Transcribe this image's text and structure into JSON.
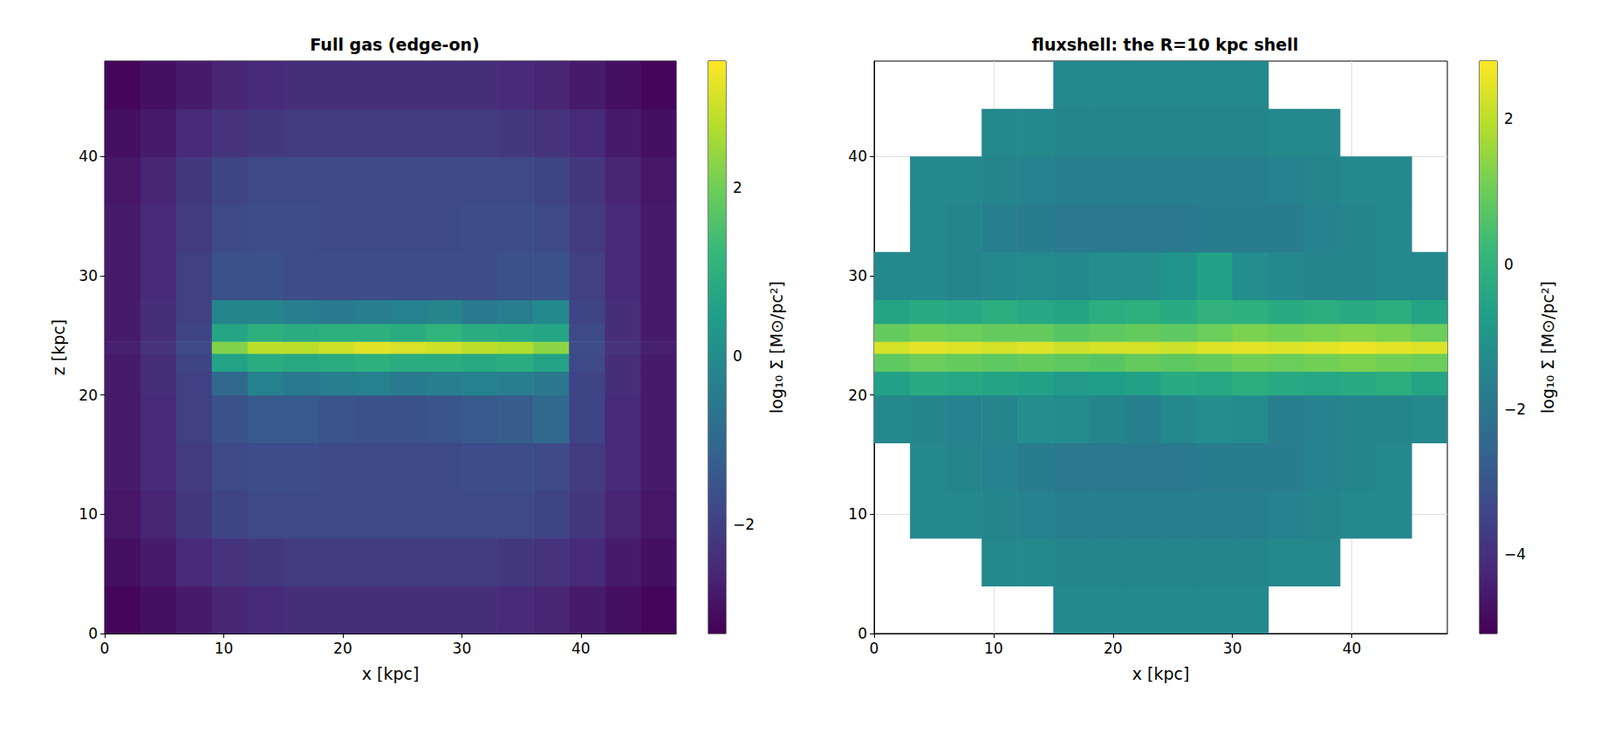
{
  "chart_data": [
    {
      "type": "heatmap",
      "title": "Full gas (edge-on)",
      "xlabel": "x [kpc]",
      "ylabel": "z [kpc]",
      "xlim": [
        0,
        48
      ],
      "ylim": [
        0,
        48
      ],
      "xticks": [
        0,
        10,
        20,
        30,
        40
      ],
      "yticks": [
        0,
        10,
        20,
        30,
        40
      ],
      "grid": false,
      "x_edges": [
        0,
        3,
        6,
        9,
        12,
        15,
        18,
        21,
        24,
        27,
        30,
        33,
        36,
        39,
        42,
        45,
        48
      ],
      "z_edges": [
        0,
        4,
        8,
        12,
        16,
        20,
        22,
        23.5,
        24.5,
        26,
        28,
        32,
        36,
        40,
        44,
        48
      ],
      "cells": [
        [
          -3.2,
          -3.0,
          -2.8,
          -2.6,
          -2.5,
          -2.4,
          -2.4,
          -2.4,
          -2.4,
          -2.4,
          -2.4,
          -2.5,
          -2.6,
          -2.8,
          -3.0,
          -3.2
        ],
        [
          -3.0,
          -2.8,
          -2.5,
          -2.3,
          -2.2,
          -2.1,
          -2.1,
          -2.1,
          -2.1,
          -2.1,
          -2.1,
          -2.2,
          -2.3,
          -2.5,
          -2.8,
          -3.0
        ],
        [
          -2.9,
          -2.6,
          -2.2,
          -1.9,
          -1.8,
          -1.8,
          -1.8,
          -1.8,
          -1.8,
          -1.8,
          -1.8,
          -1.8,
          -1.9,
          -2.2,
          -2.6,
          -2.9
        ],
        [
          -2.8,
          -2.5,
          -2.1,
          -1.8,
          -1.7,
          -1.7,
          -1.8,
          -1.8,
          -1.8,
          -1.8,
          -1.7,
          -1.7,
          -1.8,
          -2.1,
          -2.5,
          -2.8
        ],
        [
          -2.8,
          -2.5,
          -2.0,
          -1.6,
          -1.4,
          -1.4,
          -1.5,
          -1.6,
          -1.6,
          -1.5,
          -1.4,
          -1.3,
          -1.0,
          -1.9,
          -2.5,
          -2.8
        ],
        [
          -2.8,
          -2.4,
          -2.0,
          -1.0,
          -0.3,
          -0.5,
          -0.4,
          -0.3,
          -0.5,
          -0.4,
          -0.3,
          -0.4,
          -0.6,
          -1.9,
          -2.4,
          -2.8
        ],
        [
          -2.8,
          -2.4,
          -1.9,
          0.6,
          0.9,
          0.8,
          0.9,
          1.0,
          0.9,
          0.9,
          0.8,
          0.9,
          0.6,
          -1.8,
          -2.4,
          -2.8
        ],
        [
          -2.7,
          -2.3,
          -1.8,
          2.2,
          2.8,
          2.8,
          3.0,
          3.2,
          3.1,
          3.0,
          2.8,
          2.7,
          2.3,
          -1.7,
          -2.3,
          -2.7
        ],
        [
          -2.8,
          -2.4,
          -1.9,
          0.7,
          1.0,
          0.9,
          1.0,
          1.0,
          0.9,
          1.1,
          0.9,
          0.8,
          0.7,
          -1.8,
          -2.4,
          -2.8
        ],
        [
          -2.8,
          -2.4,
          -2.0,
          -0.2,
          -0.2,
          -0.4,
          -0.5,
          -0.4,
          -0.3,
          -0.2,
          -0.5,
          -0.4,
          -0.1,
          -1.9,
          -2.4,
          -2.8
        ],
        [
          -2.8,
          -2.5,
          -2.0,
          -1.6,
          -1.6,
          -1.7,
          -1.7,
          -1.7,
          -1.7,
          -1.7,
          -1.7,
          -1.6,
          -1.6,
          -2.0,
          -2.5,
          -2.8
        ],
        [
          -2.8,
          -2.5,
          -2.1,
          -1.8,
          -1.7,
          -1.7,
          -1.8,
          -1.8,
          -1.8,
          -1.8,
          -1.7,
          -1.7,
          -1.8,
          -2.1,
          -2.5,
          -2.8
        ],
        [
          -2.9,
          -2.6,
          -2.2,
          -1.9,
          -1.8,
          -1.8,
          -1.8,
          -1.8,
          -1.8,
          -1.8,
          -1.8,
          -1.8,
          -1.9,
          -2.2,
          -2.6,
          -2.9
        ],
        [
          -3.0,
          -2.8,
          -2.5,
          -2.3,
          -2.2,
          -2.1,
          -2.1,
          -2.1,
          -2.1,
          -2.1,
          -2.1,
          -2.2,
          -2.3,
          -2.5,
          -2.8,
          -3.0
        ],
        [
          -3.2,
          -3.0,
          -2.8,
          -2.6,
          -2.5,
          -2.4,
          -2.4,
          -2.4,
          -2.4,
          -2.4,
          -2.4,
          -2.5,
          -2.6,
          -2.8,
          -3.0,
          -3.2
        ]
      ],
      "colorbar": {
        "label": "log₁₀ Σ [M⊙/pc²]",
        "range": [
          -3.3,
          3.5
        ],
        "ticks": [
          {
            "value": -2,
            "label": "−2"
          },
          0,
          2
        ]
      }
    },
    {
      "type": "heatmap",
      "title": "fluxshell: the R=10 kpc shell",
      "xlabel": "x [kpc]",
      "xlim": [
        0,
        48
      ],
      "ylim": [
        0,
        48
      ],
      "xticks": [
        0,
        10,
        20,
        30,
        40
      ],
      "yticks": [
        0,
        10,
        20,
        30,
        40
      ],
      "grid": true,
      "x_edges": [
        0,
        3,
        6,
        9,
        12,
        15,
        18,
        21,
        24,
        27,
        30,
        33,
        36,
        39,
        42,
        45,
        48
      ],
      "z_edges": [
        0,
        4,
        8,
        12,
        16,
        20,
        22,
        23.5,
        24.5,
        26,
        28,
        32,
        36,
        40,
        44,
        48
      ],
      "cells": [
        [
          null,
          null,
          null,
          null,
          null,
          -1.4,
          -1.4,
          -1.4,
          -1.4,
          -1.4,
          -1.4,
          null,
          null,
          null,
          null,
          null
        ],
        [
          null,
          null,
          null,
          -1.4,
          -1.4,
          -1.5,
          -1.5,
          -1.5,
          -1.5,
          -1.5,
          -1.5,
          -1.4,
          -1.4,
          null,
          null,
          null
        ],
        [
          null,
          -1.4,
          -1.4,
          -1.5,
          -1.6,
          -1.7,
          -1.7,
          -1.7,
          -1.7,
          -1.7,
          -1.7,
          -1.6,
          -1.5,
          -1.4,
          -1.4,
          null
        ],
        [
          null,
          -1.4,
          -1.5,
          -1.6,
          -1.8,
          -1.9,
          -1.9,
          -1.9,
          -1.9,
          -1.8,
          -1.8,
          -1.8,
          -1.6,
          -1.5,
          -1.4,
          null
        ],
        [
          -1.4,
          -1.5,
          -1.6,
          -1.5,
          -1.2,
          -1.3,
          -1.5,
          -1.7,
          -1.4,
          -1.2,
          -1.3,
          -1.7,
          -1.6,
          -1.5,
          -1.5,
          -1.4
        ],
        [
          -0.6,
          -0.3,
          -0.4,
          -0.5,
          -0.6,
          -0.8,
          -0.7,
          -0.6,
          -0.3,
          -0.4,
          -0.2,
          -0.3,
          -0.4,
          -0.3,
          -0.2,
          -0.5
        ],
        [
          0.8,
          1.0,
          0.9,
          0.8,
          0.9,
          0.8,
          0.7,
          0.9,
          0.8,
          0.9,
          1.1,
          1.0,
          1.1,
          1.2,
          1.1,
          1.0
        ],
        [
          2.3,
          2.5,
          2.4,
          2.3,
          2.4,
          2.2,
          2.3,
          2.3,
          2.2,
          2.4,
          2.5,
          2.4,
          2.5,
          2.6,
          2.5,
          2.4
        ],
        [
          0.9,
          1.1,
          1.0,
          0.9,
          0.9,
          0.7,
          0.8,
          0.9,
          0.8,
          1.0,
          1.2,
          1.1,
          1.2,
          1.3,
          1.2,
          1.0
        ],
        [
          -0.5,
          -0.3,
          -0.4,
          -0.2,
          -0.4,
          -0.5,
          -0.2,
          -0.1,
          -0.3,
          0.0,
          -0.1,
          -0.3,
          -0.2,
          -0.3,
          -0.2,
          -0.5
        ],
        [
          -1.4,
          -1.4,
          -1.5,
          -1.4,
          -1.3,
          -1.4,
          -1.2,
          -1.2,
          -1.0,
          -0.6,
          -1.2,
          -1.4,
          -1.5,
          -1.5,
          -1.4,
          -1.4
        ],
        [
          null,
          -1.4,
          -1.5,
          -1.7,
          -1.8,
          -1.9,
          -1.9,
          -1.9,
          -1.9,
          -1.8,
          -1.8,
          -1.8,
          -1.6,
          -1.5,
          -1.4,
          null
        ],
        [
          null,
          -1.4,
          -1.4,
          -1.5,
          -1.6,
          -1.7,
          -1.7,
          -1.7,
          -1.7,
          -1.7,
          -1.7,
          -1.6,
          -1.5,
          -1.4,
          -1.4,
          null
        ],
        [
          null,
          null,
          null,
          -1.4,
          -1.4,
          -1.5,
          -1.5,
          -1.5,
          -1.5,
          -1.5,
          -1.5,
          -1.4,
          -1.4,
          null,
          null,
          null
        ],
        [
          null,
          null,
          null,
          null,
          null,
          -1.4,
          -1.4,
          -1.4,
          -1.4,
          -1.4,
          -1.4,
          null,
          null,
          null,
          null,
          null
        ]
      ],
      "colorbar": {
        "label": "log₁₀ Σ [M⊙/pc²]",
        "range": [
          -5.1,
          2.8
        ],
        "ticks": [
          {
            "value": -4,
            "label": "−4"
          },
          {
            "value": -2,
            "label": "−2"
          },
          0,
          2
        ]
      }
    }
  ]
}
